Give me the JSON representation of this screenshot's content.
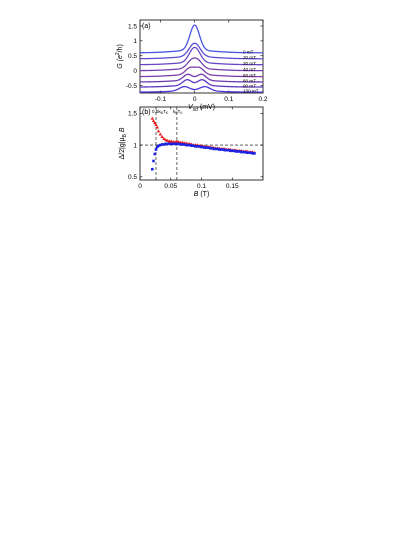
{
  "chart_data": [
    {
      "type": "line",
      "panel_label": "(a)",
      "xlabel_main": "V",
      "xlabel_sub": "sd",
      "xlabel_unit": " (mV)",
      "ylabel_main": "G (e",
      "ylabel_sup": "2",
      "ylabel_tail": "/h)",
      "xlim": [
        -0.16,
        0.2
      ],
      "ylim": [
        -0.75,
        1.7
      ],
      "x_ticks": [
        {
          "v": -0.1,
          "label": "-0.1"
        },
        {
          "v": 0,
          "label": "0"
        },
        {
          "v": 0.1,
          "label": "0.1"
        },
        {
          "v": 0.2,
          "label": "0.2"
        }
      ],
      "y_ticks": [
        {
          "v": 1.5,
          "label": "1.5"
        },
        {
          "v": 1.0,
          "label": "1"
        },
        {
          "v": 0.5,
          "label": "0.5"
        },
        {
          "v": 0.0,
          "label": "0"
        },
        {
          "v": -0.5,
          "label": "-0.5"
        }
      ],
      "series": [
        {
          "name": "0 mT",
          "offset": 0.6,
          "peaks": [
            [
              0,
              0.85,
              0.014
            ]
          ],
          "bg": 0.08,
          "color": "#4a55e0"
        },
        {
          "name": "20 mT",
          "offset": 0.4,
          "peaks": [
            [
              0,
              0.45,
              0.016
            ]
          ],
          "bg": 0.07,
          "color": "#5b4fd3"
        },
        {
          "name": "30 mT",
          "offset": 0.2,
          "peaks": [
            [
              -0.006,
              0.28,
              0.014
            ],
            [
              0.006,
              0.28,
              0.014
            ]
          ],
          "bg": 0.07,
          "color": "#6a48c3"
        },
        {
          "name": "40 mT",
          "offset": 0.0,
          "peaks": [
            [
              -0.01,
              0.24,
              0.013
            ],
            [
              0.01,
              0.24,
              0.013
            ]
          ],
          "bg": 0.07,
          "color": "#7743b3"
        },
        {
          "name": "60 mT",
          "offset": -0.2,
          "peaks": [
            [
              -0.014,
              0.22,
              0.013
            ],
            [
              0.014,
              0.22,
              0.013
            ]
          ],
          "bg": 0.07,
          "color": "#7e3fa8"
        },
        {
          "name": "80 mT",
          "offset": -0.38,
          "peaks": [
            [
              -0.02,
              0.2,
              0.013
            ],
            [
              0.02,
              0.2,
              0.013
            ]
          ],
          "bg": 0.06,
          "color": "#6e3ab0"
        },
        {
          "name": "90 mT",
          "offset": -0.55,
          "peaks": [
            [
              -0.022,
              0.19,
              0.013
            ],
            [
              0.022,
              0.19,
              0.013
            ]
          ],
          "bg": 0.06,
          "color": "#5e36c0"
        },
        {
          "name": "130 mT",
          "offset": -0.72,
          "peaks": [
            [
              -0.03,
              0.14,
              0.015
            ],
            [
              0.03,
              0.14,
              0.015
            ]
          ],
          "bg": 0.05,
          "color": "#4c39d6"
        }
      ]
    },
    {
      "type": "scatter",
      "panel_label": "(b)",
      "xlabel_main": "B",
      "xlabel_unit": " (T)",
      "ylabel_text": "Δ/2|g|μ",
      "ylabel_sub": "B",
      "ylabel_tail": " B",
      "xlim": [
        0,
        0.2
      ],
      "ylim": [
        0.45,
        1.6
      ],
      "x_ticks": [
        {
          "v": 0,
          "label": "0"
        },
        {
          "v": 0.05,
          "label": "0.05"
        },
        {
          "v": 0.1,
          "label": "0.1"
        },
        {
          "v": 0.15,
          "label": "0.15"
        }
      ],
      "y_ticks": [
        {
          "v": 1.5,
          "label": "1.5"
        },
        {
          "v": 1.0,
          "label": "1"
        },
        {
          "v": 0.5,
          "label": "0.5"
        }
      ],
      "hline": 1.0,
      "vlines": [
        {
          "x": 0.026,
          "label": "0.5k",
          "label_sub": "B",
          "label_tail": "T",
          "label_sub2": "K"
        },
        {
          "x": 0.06,
          "label": "k",
          "label_sub": "B",
          "label_tail": "T",
          "label_sub2": "K"
        }
      ],
      "series": [
        {
          "name": "red",
          "color": "#e8191c",
          "marker": "triangle",
          "x": [
            0.02,
            0.022,
            0.024,
            0.026,
            0.028,
            0.03,
            0.033,
            0.036,
            0.039,
            0.042,
            0.045,
            0.048,
            0.051,
            0.054,
            0.057,
            0.06,
            0.063,
            0.066,
            0.069,
            0.072,
            0.075,
            0.078,
            0.081,
            0.084,
            0.087,
            0.09,
            0.093,
            0.096,
            0.099,
            0.102,
            0.105,
            0.108,
            0.111,
            0.114,
            0.117,
            0.12,
            0.123,
            0.126,
            0.129,
            0.132,
            0.135,
            0.138,
            0.141,
            0.144,
            0.147,
            0.15,
            0.153,
            0.156,
            0.159,
            0.162,
            0.165,
            0.168,
            0.171,
            0.174,
            0.177,
            0.18,
            0.183,
            0.186
          ],
          "y": [
            1.42,
            1.38,
            1.35,
            1.32,
            1.28,
            1.22,
            1.17,
            1.13,
            1.1,
            1.08,
            1.07,
            1.06,
            1.06,
            1.05,
            1.05,
            1.06,
            1.05,
            1.04,
            1.04,
            1.03,
            1.03,
            1.02,
            1.02,
            1.01,
            1.0,
            1.0,
            1.0,
            0.99,
            0.99,
            0.98,
            0.98,
            0.97,
            0.97,
            0.97,
            0.96,
            0.96,
            0.95,
            0.95,
            0.95,
            0.94,
            0.94,
            0.94,
            0.93,
            0.93,
            0.93,
            0.92,
            0.92,
            0.92,
            0.91,
            0.91,
            0.91,
            0.9,
            0.9,
            0.9,
            0.89,
            0.89,
            0.89,
            0.88
          ]
        },
        {
          "name": "blue",
          "color": "#1d22e0",
          "marker": "square",
          "x": [
            0.02,
            0.022,
            0.024,
            0.026,
            0.028,
            0.03,
            0.033,
            0.036,
            0.039,
            0.042,
            0.045,
            0.048,
            0.051,
            0.054,
            0.057,
            0.06,
            0.063,
            0.066,
            0.069,
            0.072,
            0.075,
            0.078,
            0.081,
            0.084,
            0.087,
            0.09,
            0.093,
            0.096,
            0.099,
            0.102,
            0.105,
            0.108,
            0.111,
            0.114,
            0.117,
            0.12,
            0.123,
            0.126,
            0.129,
            0.132,
            0.135,
            0.138,
            0.141,
            0.144,
            0.147,
            0.15,
            0.153,
            0.156,
            0.159,
            0.162,
            0.165,
            0.168,
            0.171,
            0.174,
            0.177,
            0.18,
            0.183,
            0.186
          ],
          "y": [
            0.62,
            0.75,
            0.86,
            0.93,
            0.97,
            0.99,
            1.0,
            1.01,
            1.01,
            1.02,
            1.02,
            1.02,
            1.02,
            1.02,
            1.02,
            1.02,
            1.02,
            1.01,
            1.01,
            1.01,
            1.0,
            1.0,
            1.0,
            0.99,
            0.99,
            0.98,
            0.98,
            0.98,
            0.97,
            0.97,
            0.96,
            0.96,
            0.96,
            0.95,
            0.95,
            0.94,
            0.94,
            0.94,
            0.93,
            0.93,
            0.93,
            0.92,
            0.92,
            0.92,
            0.91,
            0.91,
            0.91,
            0.9,
            0.9,
            0.9,
            0.89,
            0.89,
            0.89,
            0.88,
            0.88,
            0.88,
            0.87,
            0.87
          ]
        }
      ]
    }
  ]
}
